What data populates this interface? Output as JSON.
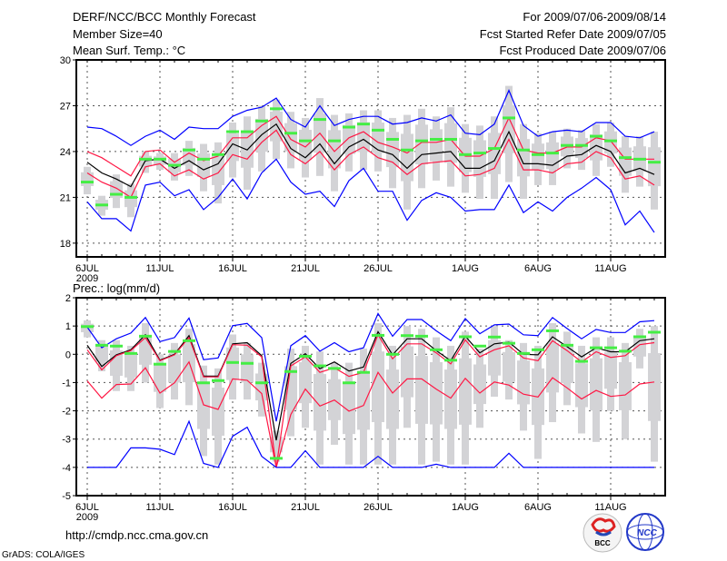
{
  "header": {
    "title": "DERF/NCC/BCC Monthly Forecast",
    "member_size": "Member Size=40",
    "period": "For 2009/07/06-2009/08/14",
    "started": "Fcst Started Refer Date 2009/07/05",
    "produced": "Fcst Produced Date 2009/07/06"
  },
  "footer": {
    "url": "http://cmdp.ncc.cma.gov.cn",
    "credit": "GrADS: COLA/IGES",
    "logo_bcc": "BCC",
    "logo_ncc": "NCC"
  },
  "colors": {
    "max_min": "#0000ff",
    "spread": "#ff1744",
    "mean": "#000000",
    "obs": "#44ee44",
    "ensemble": "#d3d3d6",
    "grid": "#555555"
  },
  "chart_data": [
    {
      "type": "line",
      "title": "Mean Surf. Temp.: °C",
      "xlabel": "",
      "ylabel": "",
      "x_tick_labels": [
        "6JUL",
        "11JUL",
        "16JUL",
        "21JUL",
        "26JUL",
        "1AUG",
        "6AUG",
        "11AUG"
      ],
      "x_tick_days": [
        0,
        5,
        10,
        15,
        20,
        26,
        31,
        36
      ],
      "x_year_label": "2009",
      "days": 40,
      "ylim": [
        17.1,
        30
      ],
      "y_ticks": [
        18,
        21,
        24,
        27,
        30
      ],
      "grid": true,
      "series": [
        {
          "name": "max",
          "color": "max_min",
          "values": [
            25.6,
            25.5,
            25.0,
            24.4,
            25.0,
            25.4,
            24.8,
            25.6,
            25.5,
            25.5,
            26.3,
            26.7,
            26.9,
            27.5,
            26.1,
            25.6,
            27.0,
            25.7,
            26.1,
            26.3,
            26.3,
            25.8,
            25.9,
            26.2,
            26.0,
            26.4,
            25.2,
            25.1,
            25.8,
            28.0,
            25.7,
            25.0,
            25.3,
            25.4,
            25.3,
            25.9,
            25.9,
            25.0,
            24.9,
            25.3
          ]
        },
        {
          "name": "upper",
          "color": "spread",
          "values": [
            24.0,
            23.6,
            23.0,
            22.4,
            24.0,
            24.1,
            23.3,
            23.9,
            23.4,
            23.7,
            24.9,
            24.9,
            25.7,
            26.3,
            24.8,
            24.3,
            25.2,
            24.0,
            24.9,
            25.3,
            24.6,
            24.3,
            23.9,
            24.6,
            24.6,
            24.8,
            23.7,
            23.7,
            24.2,
            26.2,
            24.1,
            23.9,
            23.9,
            24.3,
            24.3,
            24.9,
            24.7,
            23.5,
            23.5,
            23.5
          ]
        },
        {
          "name": "mean",
          "color": "mean",
          "values": [
            23.3,
            22.6,
            22.2,
            21.7,
            23.4,
            23.5,
            22.9,
            23.4,
            22.8,
            23.2,
            24.5,
            24.1,
            25.1,
            25.8,
            24.2,
            23.6,
            24.5,
            23.2,
            24.3,
            24.8,
            24.1,
            23.8,
            22.9,
            23.8,
            23.9,
            24.0,
            22.9,
            22.9,
            23.4,
            25.3,
            23.2,
            23.2,
            23.1,
            23.7,
            23.8,
            24.4,
            24.0,
            22.6,
            22.9,
            22.5
          ]
        },
        {
          "name": "lower",
          "color": "spread",
          "values": [
            22.6,
            22.0,
            21.6,
            21.0,
            23.0,
            23.2,
            22.4,
            22.8,
            22.2,
            22.6,
            23.8,
            23.5,
            24.6,
            25.4,
            23.8,
            23.2,
            24.0,
            22.8,
            23.8,
            24.3,
            23.6,
            23.3,
            22.5,
            23.2,
            23.3,
            23.4,
            22.4,
            22.5,
            22.9,
            24.8,
            22.8,
            22.8,
            22.6,
            23.2,
            23.3,
            24.0,
            23.6,
            22.2,
            22.4,
            21.8
          ]
        },
        {
          "name": "min",
          "color": "max_min",
          "values": [
            20.7,
            19.6,
            19.6,
            18.8,
            21.8,
            22.0,
            21.1,
            21.5,
            20.2,
            21.0,
            22.2,
            20.9,
            22.6,
            23.5,
            22.0,
            21.2,
            21.4,
            20.4,
            22.1,
            22.9,
            21.4,
            21.4,
            19.5,
            20.8,
            21.3,
            21.0,
            20.1,
            20.2,
            20.2,
            21.8,
            20.0,
            20.7,
            20.1,
            21.0,
            21.6,
            22.3,
            21.5,
            19.2,
            20.1,
            18.7
          ]
        }
      ],
      "observed": [
        22.0,
        20.5,
        21.2,
        21.0,
        23.5,
        23.5,
        23.1,
        24.1,
        23.5,
        23.8,
        25.3,
        25.3,
        26.0,
        26.8,
        25.2,
        24.7,
        26.1,
        24.7,
        25.6,
        25.8,
        25.4,
        24.8,
        24.1,
        24.7,
        24.8,
        24.8,
        23.8,
        23.9,
        24.2,
        26.2,
        24.1,
        23.8,
        23.9,
        24.4,
        24.4,
        25.0,
        24.7,
        23.6,
        23.5,
        23.3
      ],
      "ensemble_low": [
        21.2,
        19.8,
        20.3,
        19.7,
        22.6,
        22.8,
        22.1,
        22.4,
        21.4,
        20.6,
        22.3,
        21.5,
        22.7,
        23.5,
        22.9,
        22.3,
        22.4,
        21.4,
        22.7,
        22.8,
        22.7,
        21.6,
        20.2,
        21.6,
        22.1,
        21.7,
        21.3,
        20.9,
        20.9,
        22.0,
        20.9,
        21.8,
        21.8,
        22.9,
        22.8,
        22.4,
        23.0,
        21.3,
        21.7,
        20.2
      ],
      "ensemble_high": [
        23.0,
        21.1,
        22.5,
        21.9,
        24.0,
        23.9,
        23.9,
        24.7,
        24.5,
        24.6,
        25.9,
        26.3,
        27.0,
        27.4,
        26.6,
        26.2,
        27.5,
        26.4,
        26.5,
        26.7,
        26.7,
        26.2,
        26.4,
        26.8,
        26.3,
        26.9,
        25.8,
        25.7,
        26.3,
        28.3,
        25.8,
        25.2,
        25.3,
        25.5,
        25.4,
        25.8,
        25.9,
        25.0,
        25.0,
        25.3
      ]
    },
    {
      "type": "line",
      "title": "Prec.: log(mm/d)",
      "xlabel": "",
      "ylabel": "",
      "x_tick_labels": [
        "6JUL",
        "11JUL",
        "16JUL",
        "21JUL",
        "26JUL",
        "1AUG",
        "6AUG",
        "11AUG"
      ],
      "x_tick_days": [
        0,
        5,
        10,
        15,
        20,
        26,
        31,
        36
      ],
      "x_year_label": "2009",
      "days": 40,
      "ylim": [
        -5,
        2
      ],
      "y_ticks": [
        -5,
        -4,
        -3,
        -2,
        -1,
        0,
        1,
        2
      ],
      "grid": true,
      "series": [
        {
          "name": "max",
          "color": "max_min",
          "values": [
            0.96,
            0.23,
            0.55,
            0.75,
            1.3,
            0.45,
            0.59,
            1.28,
            -0.19,
            -0.13,
            1.01,
            1.09,
            0.59,
            -2.37,
            0.3,
            0.66,
            0.11,
            0.41,
            0.09,
            0.23,
            1.44,
            0.64,
            1.23,
            1.23,
            0.83,
            0.48,
            1.26,
            0.73,
            1.04,
            1.07,
            0.69,
            0.66,
            1.3,
            0.91,
            0.55,
            0.88,
            0.77,
            0.77,
            1.15,
            1.19
          ]
        },
        {
          "name": "mean",
          "color": "mean",
          "values": [
            0.32,
            -0.43,
            -0.02,
            0.16,
            0.69,
            -0.21,
            0.0,
            0.66,
            -0.77,
            -0.77,
            0.37,
            0.41,
            -0.05,
            -3.04,
            -0.32,
            0.02,
            -0.51,
            -0.27,
            -0.59,
            -0.45,
            0.8,
            -0.02,
            0.55,
            0.55,
            0.13,
            -0.23,
            0.64,
            0.05,
            0.37,
            0.43,
            0.0,
            -0.02,
            0.62,
            0.27,
            -0.09,
            0.23,
            0.09,
            0.09,
            0.48,
            0.55
          ]
        },
        {
          "name": "upper",
          "color": "spread",
          "values": [
            0.16,
            -0.55,
            -0.05,
            0.13,
            0.59,
            -0.23,
            -0.02,
            0.59,
            -0.8,
            -0.8,
            0.34,
            0.32,
            -0.09,
            -4.0,
            -0.41,
            -0.09,
            -0.64,
            -0.48,
            -0.78,
            -0.64,
            0.69,
            -0.16,
            0.37,
            0.37,
            0.05,
            -0.34,
            0.51,
            -0.09,
            0.16,
            0.3,
            -0.13,
            -0.23,
            0.48,
            0.13,
            -0.27,
            0.09,
            -0.11,
            -0.05,
            0.34,
            0.41
          ]
        },
        {
          "name": "lower",
          "color": "spread",
          "values": [
            -0.94,
            -1.55,
            -1.07,
            -1.05,
            -0.48,
            -1.37,
            -1.01,
            -0.27,
            -1.79,
            -1.95,
            -0.87,
            -0.92,
            -1.39,
            -4.0,
            -2.13,
            -1.23,
            -1.83,
            -1.62,
            -2.01,
            -1.81,
            -0.64,
            -1.37,
            -0.87,
            -0.87,
            -1.23,
            -1.55,
            -0.85,
            -1.37,
            -0.98,
            -1.09,
            -1.41,
            -1.51,
            -0.83,
            -1.19,
            -1.58,
            -1.28,
            -1.49,
            -1.44,
            -1.05,
            -0.98
          ]
        },
        {
          "name": "min",
          "color": "max_min",
          "values": [
            -4.0,
            -4.0,
            -4.0,
            -3.31,
            -3.31,
            -3.36,
            -3.55,
            -2.37,
            -3.86,
            -4.0,
            -2.9,
            -2.58,
            -3.61,
            -4.0,
            -4.0,
            -3.41,
            -4.0,
            -4.0,
            -4.0,
            -4.0,
            -3.61,
            -4.0,
            -4.0,
            -4.0,
            -3.89,
            -4.0,
            -4.0,
            -4.0,
            -4.0,
            -3.5,
            -4.0,
            -4.0,
            -4.0,
            -4.0,
            -4.0,
            -4.0,
            -4.0,
            -4.0,
            -4.0,
            -4.0
          ]
        }
      ],
      "observed": [
        0.98,
        0.32,
        0.29,
        0.03,
        0.64,
        -0.35,
        0.1,
        0.48,
        -1.01,
        -0.93,
        -0.29,
        -0.32,
        -1.01,
        -3.68,
        -0.61,
        -0.07,
        -0.41,
        -0.5,
        -1.01,
        -0.64,
        0.67,
        0.0,
        0.66,
        0.64,
        0.16,
        -0.21,
        0.62,
        0.29,
        0.61,
        0.39,
        0.03,
        0.16,
        0.83,
        0.32,
        -0.25,
        0.23,
        0.23,
        0.11,
        0.62,
        0.78
      ],
      "ensemble_low": [
        0.6,
        -0.6,
        -1.3,
        -1.3,
        -1.0,
        -1.9,
        -1.6,
        -1.8,
        -3.6,
        -3.9,
        -1.6,
        -1.6,
        -2.2,
        -3.8,
        -2.9,
        -2.6,
        -3.9,
        -3.2,
        -3.9,
        -3.9,
        -3.9,
        -3.9,
        -2.6,
        -3.9,
        -3.8,
        -3.9,
        -3.9,
        -2.6,
        -1.5,
        -1.6,
        -2.7,
        -3.7,
        -2.4,
        -1.8,
        -2.8,
        -3.1,
        -2.0,
        -3.0,
        -0.5,
        -3.8
      ],
      "ensemble_high": [
        1.2,
        0.5,
        0.5,
        0.3,
        1.1,
        0.0,
        0.4,
        0.9,
        -0.4,
        -0.5,
        0.7,
        0.4,
        -0.3,
        -2.7,
        0.2,
        0.3,
        0.1,
        -0.3,
        -0.3,
        0.2,
        1.1,
        0.3,
        1.0,
        0.9,
        0.6,
        0.3,
        0.8,
        0.2,
        1.0,
        0.5,
        0.4,
        0.3,
        1.1,
        0.8,
        0.3,
        0.6,
        0.6,
        0.4,
        0.9,
        1.0
      ]
    }
  ]
}
